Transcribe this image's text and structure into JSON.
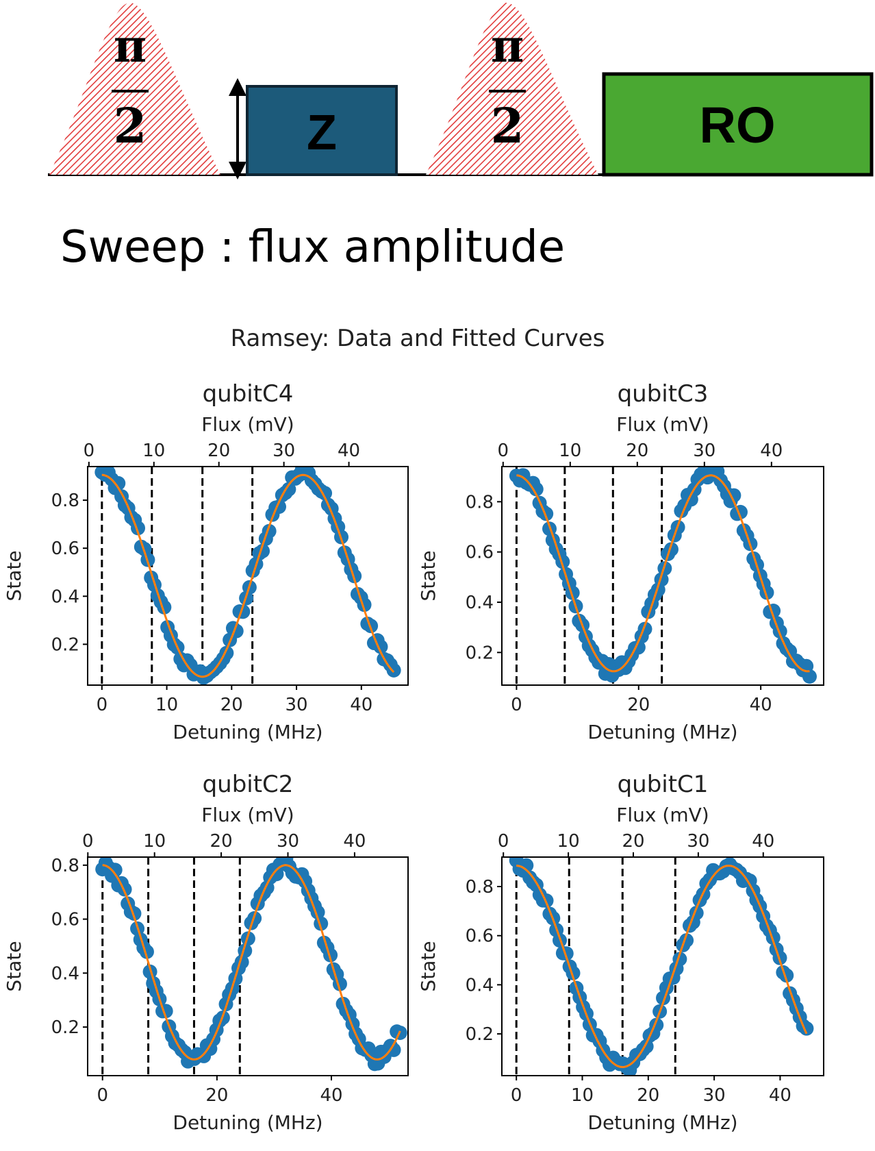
{
  "sequence": {
    "pulse1": {
      "numerator": "π",
      "denominator": "2"
    },
    "flux_box_label": "Z",
    "pulse2": {
      "numerator": "π",
      "denominator": "2"
    },
    "readout_label": "RO",
    "colors": {
      "pulse_hatch": "#e23b3b",
      "flux_box": "#1c5a7a",
      "readout_box": "#4aa832"
    }
  },
  "sweep_text": "Sweep : flux amplitude",
  "figure_title": "Ramsey: Data and Fitted Curves",
  "chart_data": [
    {
      "type": "scatter",
      "title": "qubitC4",
      "xlabel": "Detuning (MHz)",
      "ylabel": "State",
      "top_xlabel": "Flux (mV)",
      "xlim": [
        -2.2,
        47.2
      ],
      "ylim": [
        0.03,
        0.94
      ],
      "xticks": [
        0,
        10,
        20,
        30,
        40
      ],
      "yticks": [
        0.2,
        0.4,
        0.6,
        0.8
      ],
      "top_xticks": [
        0,
        10,
        20,
        30,
        40
      ],
      "top_flux_per_mhz": 0.998,
      "top_flux_offset": 2.0,
      "vlines": [
        0,
        7.7,
        15.5,
        23.2
      ],
      "fit": {
        "offset": 0.485,
        "amplitude": 0.42,
        "period": 31.0
      },
      "data_range": [
        0,
        45
      ],
      "n_points": 90,
      "colors": {
        "data": "#1f77b4",
        "fit": "#ff7f0e",
        "vline": "#000000"
      }
    },
    {
      "type": "scatter",
      "title": "qubitC3",
      "xlabel": "Detuning (MHz)",
      "ylabel": "State",
      "top_xlabel": "Flux (mV)",
      "xlim": [
        -2.4,
        50.3
      ],
      "ylim": [
        0.07,
        0.94
      ],
      "xticks": [
        0,
        20,
        40
      ],
      "yticks": [
        0.2,
        0.4,
        0.6,
        0.8
      ],
      "top_xticks": [
        0,
        10,
        20,
        30,
        40
      ],
      "top_flux_per_mhz": 0.91,
      "top_flux_offset": 2.0,
      "vlines": [
        0,
        7.9,
        15.8,
        23.8
      ],
      "fit": {
        "offset": 0.515,
        "amplitude": 0.39,
        "period": 31.8
      },
      "data_range": [
        0,
        48
      ],
      "n_points": 90,
      "colors": {
        "data": "#1f77b4",
        "fit": "#ff7f0e",
        "vline": "#000000"
      }
    },
    {
      "type": "scatter",
      "title": "qubitC2",
      "xlabel": "Detuning (MHz)",
      "ylabel": "State",
      "top_xlabel": "Flux (mV)",
      "xlim": [
        -2.6,
        53.4
      ],
      "ylim": [
        0.02,
        0.83
      ],
      "xticks": [
        0,
        20,
        40
      ],
      "yticks": [
        0.2,
        0.4,
        0.6,
        0.8
      ],
      "top_xticks": [
        0,
        10,
        20,
        30,
        40
      ],
      "top_flux_per_mhz": 0.858,
      "top_flux_offset": 2.2,
      "vlines": [
        0,
        8.0,
        16.0,
        24.0
      ],
      "fit": {
        "offset": 0.44,
        "amplitude": 0.36,
        "period": 32.0
      },
      "data_range": [
        0,
        52
      ],
      "n_points": 95,
      "colors": {
        "data": "#1f77b4",
        "fit": "#ff7f0e",
        "vline": "#000000"
      }
    },
    {
      "type": "scatter",
      "title": "qubitC1",
      "xlabel": "Detuning (MHz)",
      "ylabel": "State",
      "top_xlabel": "Flux (mV)",
      "xlim": [
        -2.2,
        46.6
      ],
      "ylim": [
        0.03,
        0.92
      ],
      "xticks": [
        0,
        10,
        20,
        30,
        40
      ],
      "yticks": [
        0.2,
        0.4,
        0.6,
        0.8
      ],
      "top_xticks": [
        0,
        10,
        20,
        30,
        40
      ],
      "top_flux_per_mhz": 1.015,
      "top_flux_offset": 2.0,
      "vlines": [
        0,
        8.0,
        16.1,
        24.1
      ],
      "fit": {
        "offset": 0.475,
        "amplitude": 0.41,
        "period": 32.2
      },
      "data_range": [
        0,
        44
      ],
      "n_points": 88,
      "colors": {
        "data": "#1f77b4",
        "fit": "#ff7f0e",
        "vline": "#000000"
      }
    }
  ]
}
